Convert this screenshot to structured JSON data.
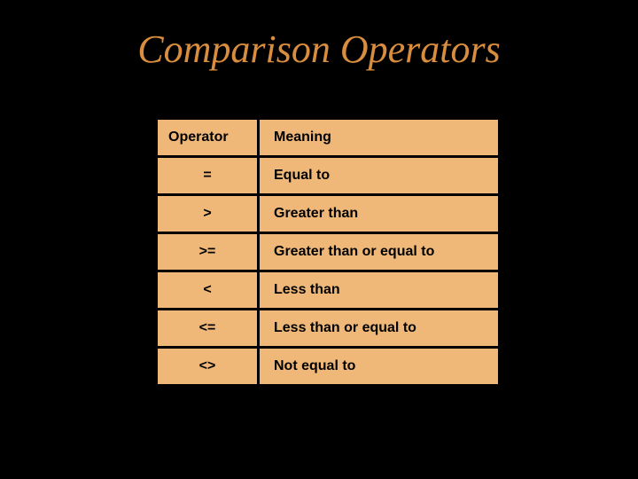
{
  "slide": {
    "title": "Comparison Operators",
    "title_color": "#d98d3e",
    "title_fontsize": 44,
    "background_color": "#000000"
  },
  "table": {
    "cell_bg": "#f0b878",
    "border_color": "#000000",
    "text_color": "#000000",
    "columns": [
      "Operator",
      "Meaning"
    ],
    "rows": [
      [
        "=",
        "Equal to"
      ],
      [
        ">",
        "Greater than"
      ],
      [
        ">=",
        "Greater than or equal to"
      ],
      [
        "<",
        "Less than"
      ],
      [
        "<=",
        "Less than or equal to"
      ],
      [
        "<>",
        "Not equal to"
      ]
    ]
  }
}
